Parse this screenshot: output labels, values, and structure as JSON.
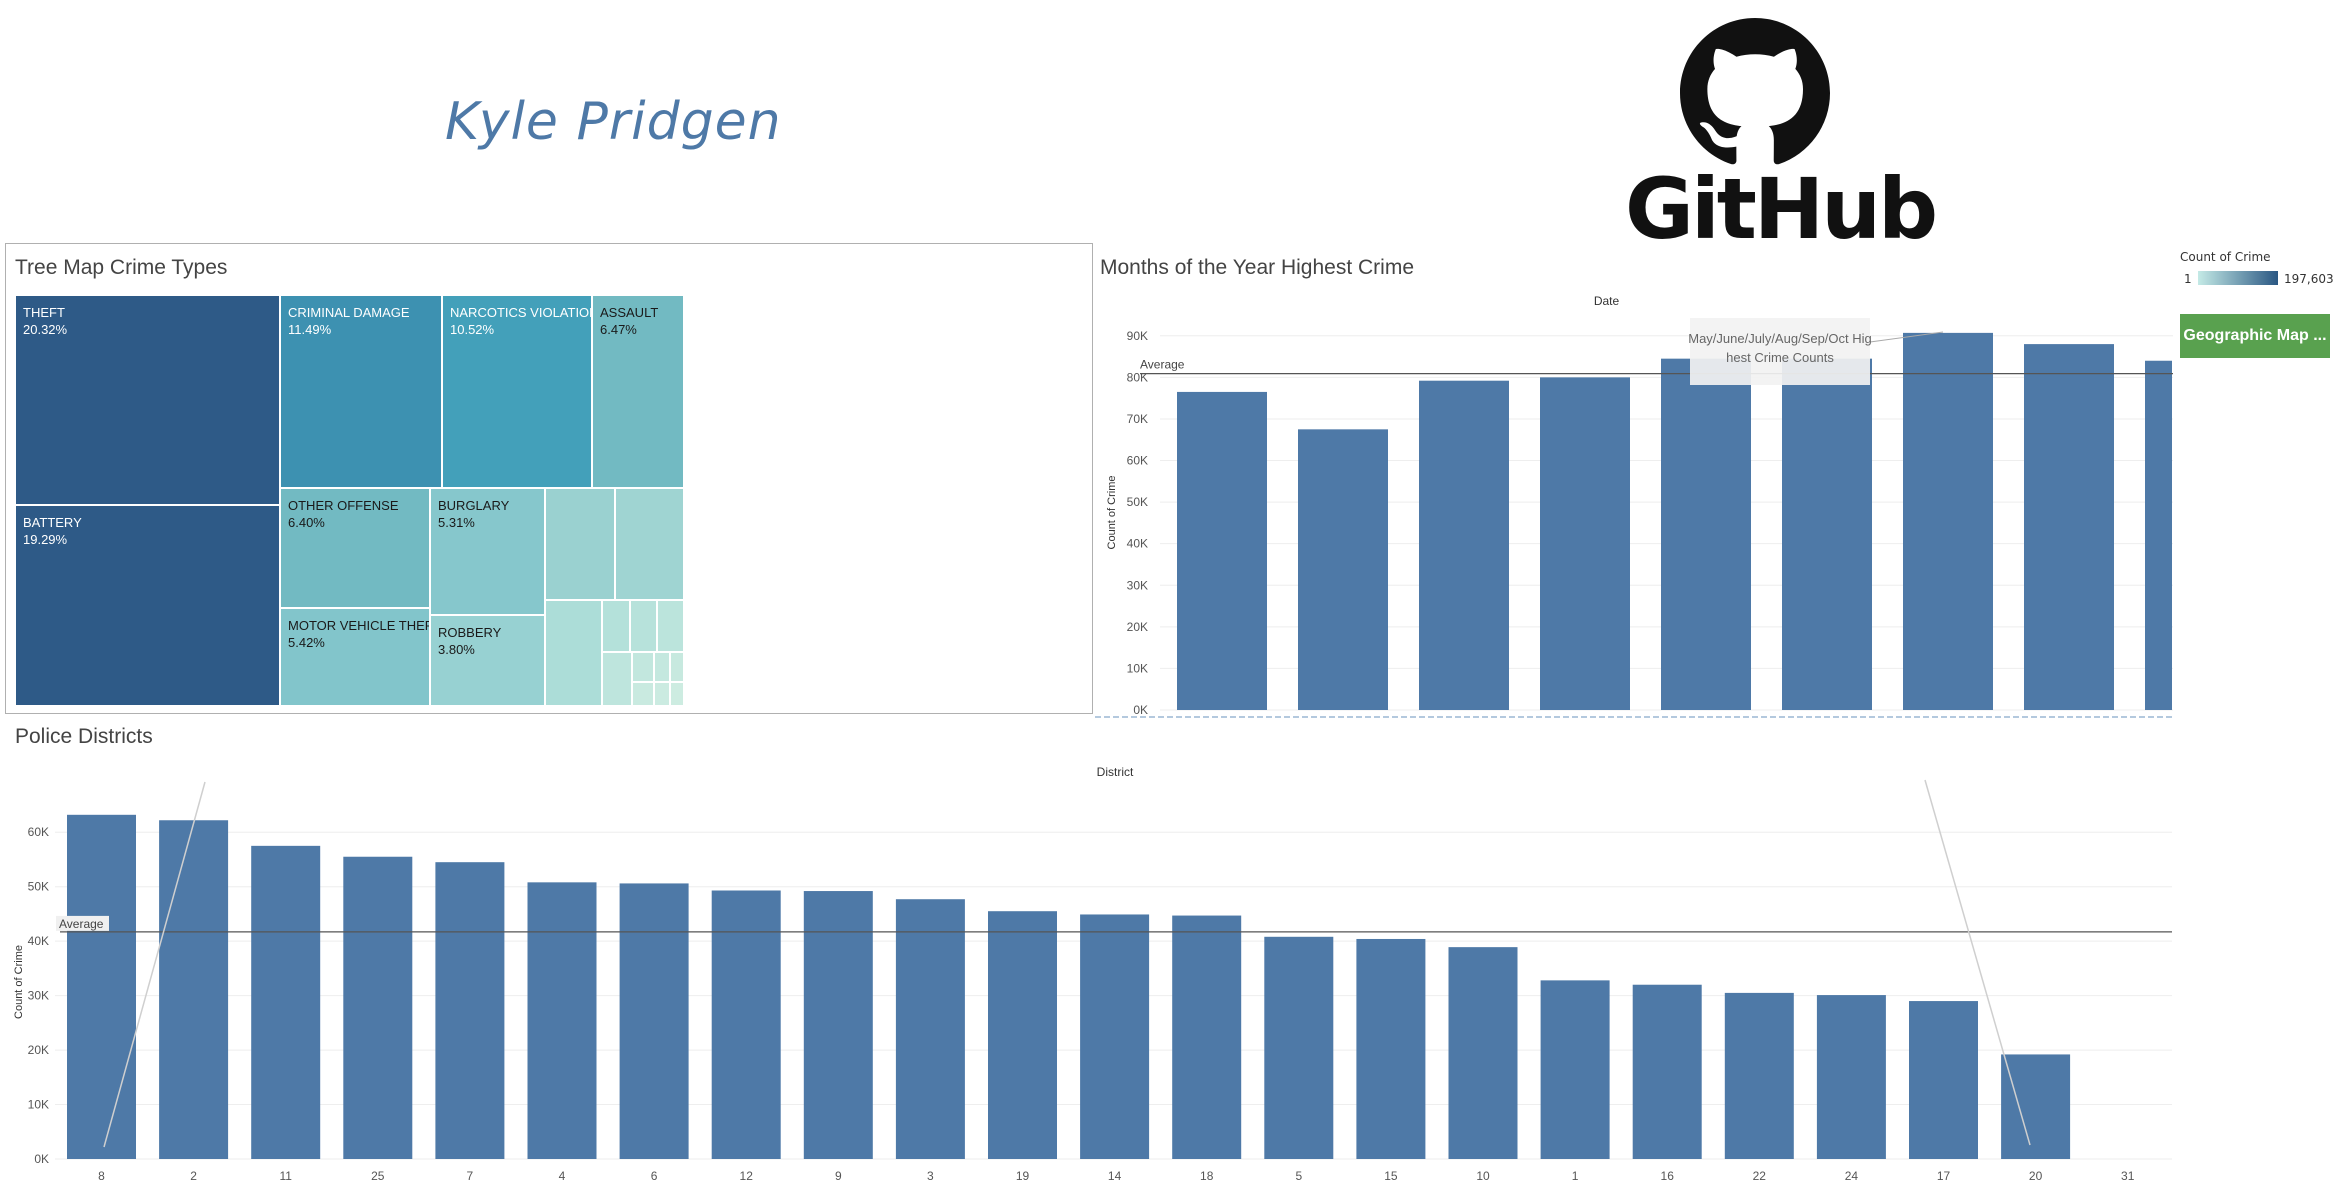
{
  "header": {
    "author": "Kyle Pridgen",
    "brand_word": "GitHub",
    "brand_icon": "github-octocat-icon"
  },
  "legend": {
    "title": "Count of Crime",
    "min": "1",
    "max": "197,603",
    "color_low": "#c4eae6",
    "color_high": "#2a5783"
  },
  "buttons": {
    "geo_map": "Geographic Map ...",
    "geo_map_color": "#59a14f"
  },
  "chart_data": [
    {
      "type": "treemap",
      "title": "Tree Map Crime Types",
      "cells": [
        {
          "label": "THEFT",
          "value": "20.32%",
          "color": "#2e5a87"
        },
        {
          "label": "BATTERY",
          "value": "19.29%",
          "color": "#2e5a87"
        },
        {
          "label": "CRIMINAL DAMAGE",
          "value": "11.49%",
          "color": "#3d91b1"
        },
        {
          "label": "NARCOTICS VIOLATION",
          "value": "10.52%",
          "color": "#43a0ba"
        },
        {
          "label": "ASSAULT",
          "value": "6.47%",
          "color": "#72bac2"
        },
        {
          "label": "OTHER OFFENSE",
          "value": "6.40%",
          "color": "#72bac2"
        },
        {
          "label": "BURGLARY",
          "value": "5.31%",
          "color": "#86c7cc"
        },
        {
          "label": "MOTOR VEHICLE THEFT",
          "value": "5.42%",
          "color": "#82c5cb"
        },
        {
          "label": "ROBBERY",
          "value": "3.80%",
          "color": "#97d1d2"
        }
      ]
    },
    {
      "type": "bar",
      "title": "Months of the Year Highest Crime",
      "xlabel": "Date",
      "ylabel": "Count of Crime",
      "yticks": [
        "0K",
        "10K",
        "20K",
        "30K",
        "40K",
        "50K",
        "60K",
        "70K",
        "80K",
        "90K"
      ],
      "ylim": [
        0,
        95000
      ],
      "values": [
        76500,
        67500,
        79200,
        80000,
        84500,
        84500,
        90700,
        88000,
        84000
      ],
      "average": 80900,
      "average_label": "Average",
      "annotation": "May/June/July/Aug/Sep/Oct Highest Crime Counts",
      "color": "#4e79a7"
    },
    {
      "type": "bar",
      "title": "Police Districts",
      "xlabel": "District",
      "ylabel": "Count of Crime",
      "yticks": [
        "0K",
        "10K",
        "20K",
        "30K",
        "40K",
        "50K",
        "60K"
      ],
      "ylim": [
        0,
        65000
      ],
      "categories": [
        "8",
        "2",
        "11",
        "25",
        "7",
        "4",
        "6",
        "12",
        "9",
        "3",
        "19",
        "14",
        "18",
        "5",
        "15",
        "10",
        "1",
        "16",
        "22",
        "24",
        "17",
        "20",
        "31"
      ],
      "values": [
        63200,
        62200,
        57500,
        55500,
        54500,
        50800,
        50600,
        49300,
        49200,
        47700,
        45500,
        44900,
        44700,
        40800,
        40400,
        38900,
        32800,
        32000,
        30500,
        30100,
        29000,
        19200,
        0
      ],
      "average": 41700,
      "average_label": "Average",
      "color": "#4e79a7"
    }
  ]
}
